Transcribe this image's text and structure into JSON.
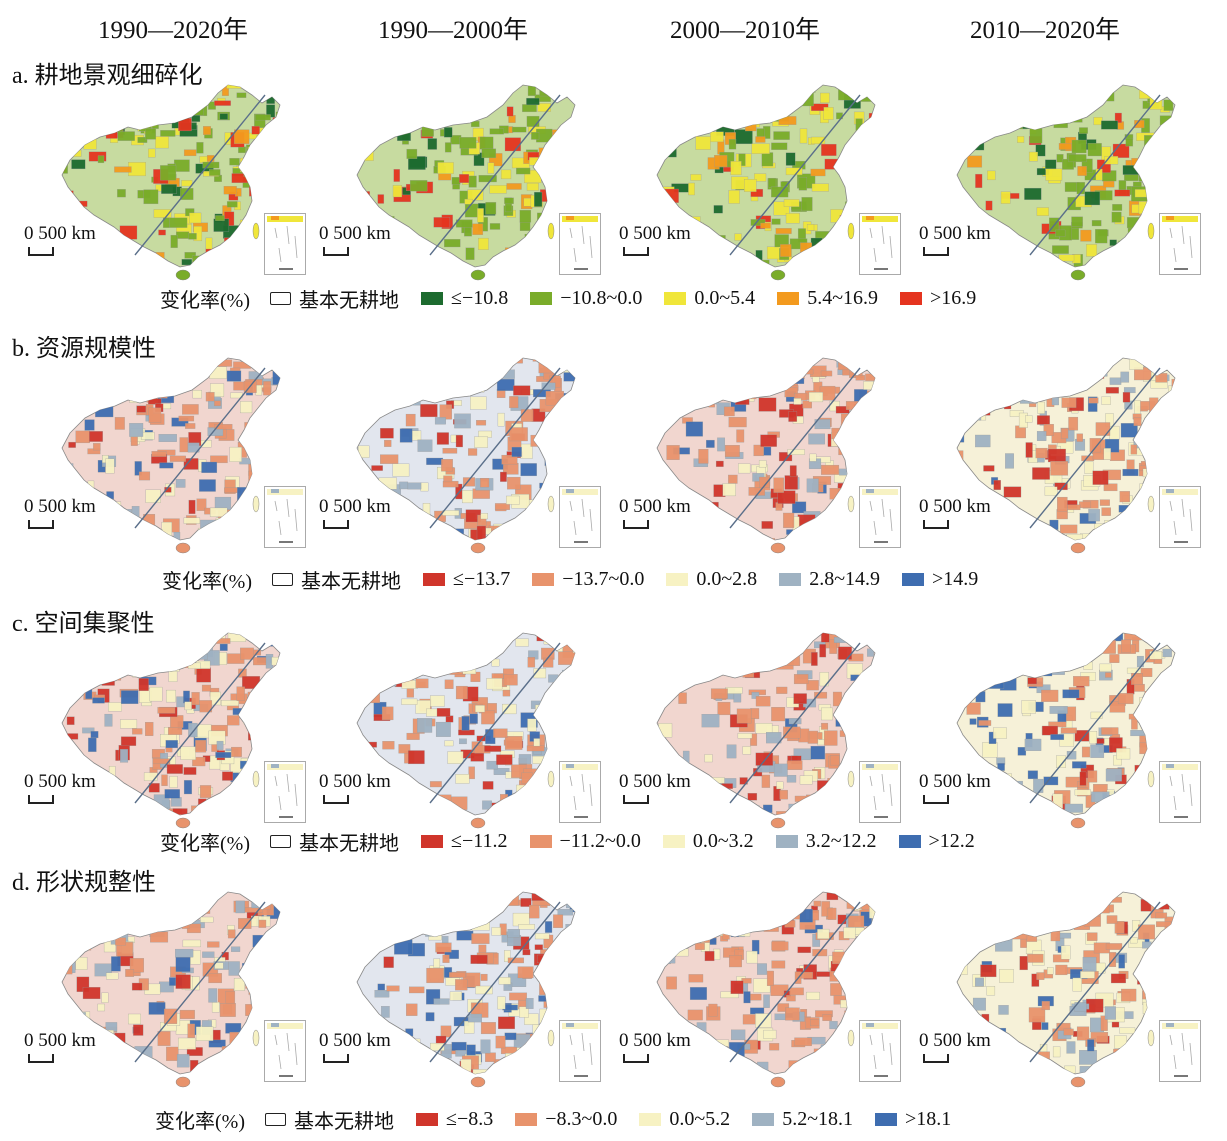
{
  "columns": [
    "1990—2020年",
    "1990—2000年",
    "2000—2010年",
    "2010—2020年"
  ],
  "scale_label": "0 500 km",
  "legend_title": "变化率(%)",
  "no_cropland_label": "基本无耕地",
  "panels": [
    {
      "title": "a. 耕地景观细碎化",
      "colors": [
        "#1d6b2f",
        "#7aac2a",
        "#f0e63a",
        "#f39a1e",
        "#e5341f"
      ],
      "labels": [
        "≤−10.8",
        "−10.8~0.0",
        "0.0~5.4",
        "5.4~16.9",
        ">16.9"
      ]
    },
    {
      "title": "b. 资源规模性",
      "colors": [
        "#d0352b",
        "#e8936c",
        "#f7f2c3",
        "#9fb2c2",
        "#3e6db0"
      ],
      "labels": [
        "≤−13.7",
        "−13.7~0.0",
        "0.0~2.8",
        "2.8~14.9",
        ">14.9"
      ]
    },
    {
      "title": "c. 空间集聚性",
      "colors": [
        "#d0352b",
        "#e8936c",
        "#f7f2c3",
        "#9fb2c2",
        "#3e6db0"
      ],
      "labels": [
        "≤−11.2",
        "−11.2~0.0",
        "0.0~3.2",
        "3.2~12.2",
        ">12.2"
      ]
    },
    {
      "title": "d. 形状规整性",
      "colors": [
        "#d0352b",
        "#e8936c",
        "#f7f2c3",
        "#9fb2c2",
        "#3e6db0"
      ],
      "labels": [
        "≤−8.3",
        "−8.3~0.0",
        "0.0~5.2",
        "5.2~18.1",
        ">18.1"
      ]
    }
  ]
}
